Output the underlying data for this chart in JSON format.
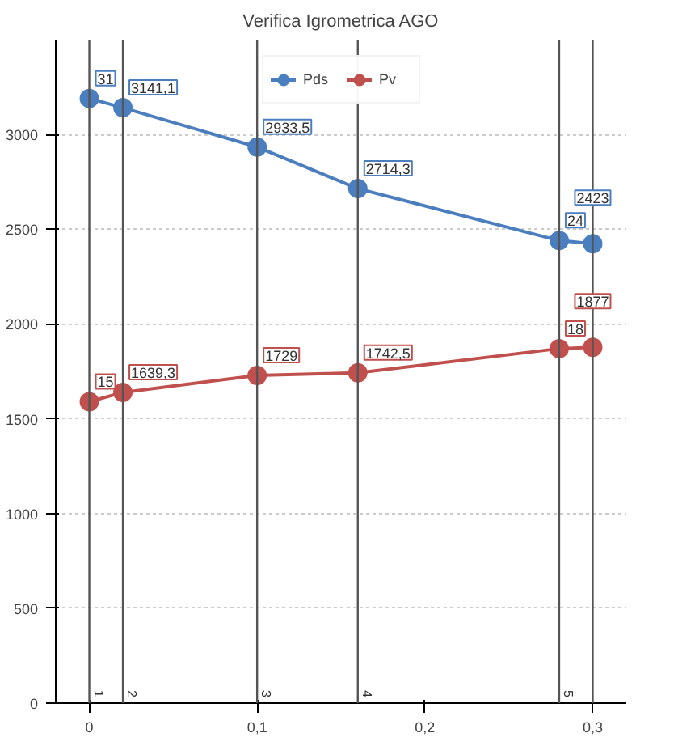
{
  "chart_data": {
    "type": "line",
    "title": "Verifica Igrometrica AGO",
    "x": [
      0,
      0.02,
      0.1,
      0.16,
      0.28,
      0.3
    ],
    "series": [
      {
        "name": "Pds",
        "color": "#4a7ebf",
        "values": [
          3190,
          3141.1,
          2933.5,
          2714.3,
          2440,
          2423
        ],
        "value_labels": [
          null,
          "3141,1",
          "2933,5",
          "2714,3",
          null,
          "2423"
        ]
      },
      {
        "name": "Pv",
        "color": "#c0504d",
        "values": [
          1590,
          1639.3,
          1729,
          1742.5,
          1870,
          1877
        ],
        "value_labels": [
          null,
          "1639,3",
          "1729",
          "1742,5",
          null,
          "1877"
        ]
      }
    ],
    "xlim": [
      -0.02,
      0.32
    ],
    "ylim": [
      0,
      3500
    ],
    "xticks": [
      0,
      {
        "value": 0.1,
        "label": "0,1"
      },
      {
        "value": 0.2,
        "label": "0,2"
      },
      {
        "value": 0.3,
        "label": "0,3"
      }
    ],
    "yticks": [
      0,
      500,
      1000,
      1500,
      2000,
      2500,
      3000
    ],
    "ref_lines": [
      {
        "axis": "x",
        "value": 0
      },
      {
        "axis": "x",
        "value": 0.02
      },
      {
        "axis": "x",
        "value": 0.1
      },
      {
        "axis": "x",
        "value": 0.16
      },
      {
        "axis": "x",
        "value": 0.28
      },
      {
        "axis": "x",
        "value": 0.3
      }
    ],
    "annotations": [
      "31",
      "24",
      "15",
      "18",
      "1",
      "2",
      "3",
      "4",
      "5"
    ],
    "grid": "y",
    "legend": "top",
    "marker": "circle",
    "line_style": "solid"
  }
}
